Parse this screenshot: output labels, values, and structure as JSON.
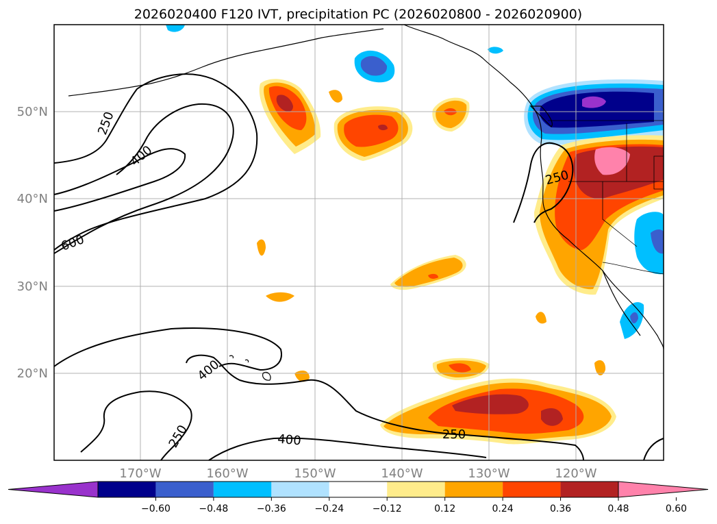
{
  "title": "2026020400 F120 IVT, precipitation PC (2026020800 - 2026020900)",
  "axes": {
    "lat_labels": [
      "50°N",
      "40°N",
      "30°N",
      "20°N"
    ],
    "lon_labels": [
      "170°W",
      "160°W",
      "150°W",
      "140°W",
      "130°W",
      "120°W"
    ]
  },
  "contour_labels": [
    "250",
    "400",
    "600",
    "250",
    "400",
    "250",
    "400",
    "250"
  ],
  "colorbar": {
    "ticks": [
      "−0.60",
      "−0.48",
      "−0.36",
      "−0.24",
      "−0.12",
      "0.12",
      "0.24",
      "0.36",
      "0.48",
      "0.60"
    ],
    "colors": [
      "#9932cc",
      "#00008b",
      "#3a5fcd",
      "#00bfff",
      "#b0e2ff",
      "#ffffff",
      "#ffec8b",
      "#ffa500",
      "#ff4500",
      "#b22222",
      "#ff82ab"
    ]
  }
}
